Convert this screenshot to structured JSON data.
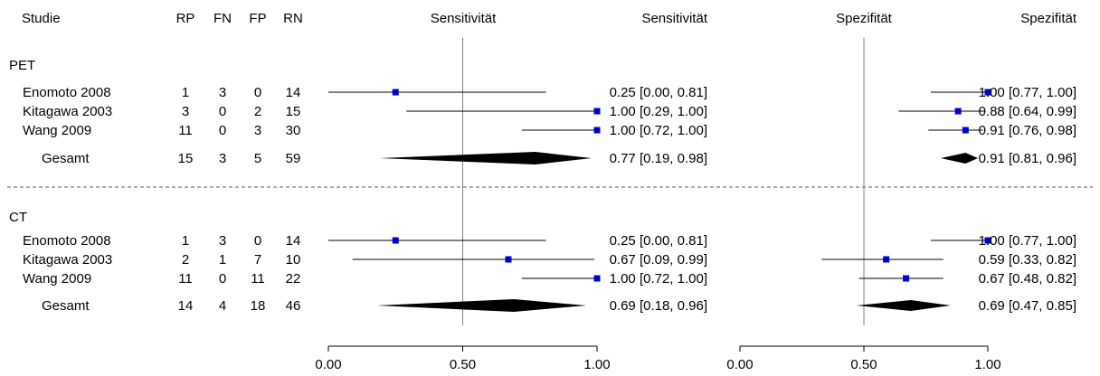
{
  "headers": {
    "study": "Studie",
    "rp": "RP",
    "fn": "FN",
    "fp": "FP",
    "rn": "RN",
    "sens_plot": "Sensitivität",
    "sens_ci": "Sensitivität",
    "spec_plot": "Spezifität",
    "spec_ci": "Spezifität"
  },
  "colors": {
    "marker": "#0000CC",
    "diamond": "#000000",
    "line": "#000000",
    "reference": "#808080"
  },
  "chart_data": {
    "type": "forest",
    "panels": [
      {
        "name": "Sensitivität",
        "xlim": [
          0,
          1
        ],
        "reference": 0.5,
        "ticks": [
          "0.00",
          "0.50",
          "1.00"
        ]
      },
      {
        "name": "Spezifität",
        "xlim": [
          0,
          1
        ],
        "reference": 0.5,
        "ticks": [
          "0.00",
          "0.50",
          "1.00"
        ]
      }
    ],
    "groups": [
      {
        "label": "PET",
        "studies": [
          {
            "name": "Enomoto 2008",
            "rp": "1",
            "fn": "3",
            "fp": "0",
            "rn": "14",
            "sens": 0.25,
            "sens_lo": 0.0,
            "sens_hi": 0.81,
            "sens_text": "0.25 [0.00, 0.81]",
            "spec": 1.0,
            "spec_lo": 0.77,
            "spec_hi": 1.0,
            "spec_text": "1.00 [0.77, 1.00]"
          },
          {
            "name": "Kitagawa 2003",
            "rp": "3",
            "fn": "0",
            "fp": "2",
            "rn": "15",
            "sens": 1.0,
            "sens_lo": 0.29,
            "sens_hi": 1.0,
            "sens_text": "1.00 [0.29, 1.00]",
            "spec": 0.88,
            "spec_lo": 0.64,
            "spec_hi": 0.99,
            "spec_text": "0.88 [0.64, 0.99]"
          },
          {
            "name": "Wang 2009",
            "rp": "11",
            "fn": "0",
            "fp": "3",
            "rn": "30",
            "sens": 1.0,
            "sens_lo": 0.72,
            "sens_hi": 1.0,
            "sens_text": "1.00 [0.72, 1.00]",
            "spec": 0.91,
            "spec_lo": 0.76,
            "spec_hi": 0.98,
            "spec_text": "0.91 [0.76, 0.98]"
          }
        ],
        "total": {
          "name": "Gesamt",
          "rp": "15",
          "fn": "3",
          "fp": "5",
          "rn": "59",
          "sens": 0.77,
          "sens_lo": 0.19,
          "sens_hi": 0.98,
          "sens_text": "0.77 [0.19, 0.98]",
          "spec": 0.91,
          "spec_lo": 0.81,
          "spec_hi": 0.96,
          "spec_text": "0.91 [0.81, 0.96]"
        }
      },
      {
        "label": "CT",
        "studies": [
          {
            "name": "Enomoto 2008",
            "rp": "1",
            "fn": "3",
            "fp": "0",
            "rn": "14",
            "sens": 0.25,
            "sens_lo": 0.0,
            "sens_hi": 0.81,
            "sens_text": "0.25 [0.00, 0.81]",
            "spec": 1.0,
            "spec_lo": 0.77,
            "spec_hi": 1.0,
            "spec_text": "1.00 [0.77, 1.00]"
          },
          {
            "name": "Kitagawa 2003",
            "rp": "2",
            "fn": "1",
            "fp": "7",
            "rn": "10",
            "sens": 0.67,
            "sens_lo": 0.09,
            "sens_hi": 0.99,
            "sens_text": "0.67 [0.09, 0.99]",
            "spec": 0.59,
            "spec_lo": 0.33,
            "spec_hi": 0.82,
            "spec_text": "0.59 [0.33, 0.82]"
          },
          {
            "name": "Wang 2009",
            "rp": "11",
            "fn": "0",
            "fp": "11",
            "rn": "22",
            "sens": 1.0,
            "sens_lo": 0.72,
            "sens_hi": 1.0,
            "sens_text": "1.00 [0.72, 1.00]",
            "spec": 0.67,
            "spec_lo": 0.48,
            "spec_hi": 0.82,
            "spec_text": "0.67 [0.48, 0.82]"
          }
        ],
        "total": {
          "name": "Gesamt",
          "rp": "14",
          "fn": "4",
          "fp": "18",
          "rn": "46",
          "sens": 0.69,
          "sens_lo": 0.18,
          "sens_hi": 0.96,
          "sens_text": "0.69 [0.18, 0.96]",
          "spec": 0.69,
          "spec_lo": 0.47,
          "spec_hi": 0.85,
          "spec_text": "0.69 [0.47, 0.85]"
        }
      }
    ]
  }
}
